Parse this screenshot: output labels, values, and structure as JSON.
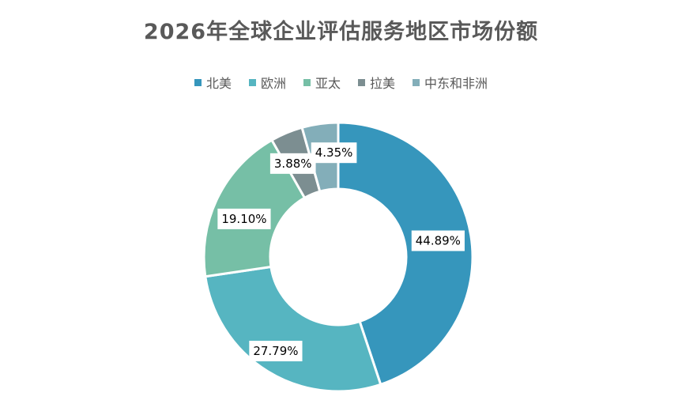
{
  "chart_data": {
    "type": "pie",
    "subtype": "donut",
    "title": "2026年全球企业评估服务地区市场份额",
    "legend_position": "top",
    "categories": [
      "北美",
      "欧洲",
      "亚太",
      "拉美",
      "中东和非洲"
    ],
    "values": [
      44.89,
      27.79,
      19.1,
      3.88,
      4.35
    ],
    "data_labels": [
      "44.89%",
      "27.79%",
      "19.10%",
      "3.88%",
      "4.35%"
    ],
    "colors": [
      "#3696BC",
      "#56B5C1",
      "#76BFA6",
      "#7C8E91",
      "#83AEB9"
    ]
  }
}
